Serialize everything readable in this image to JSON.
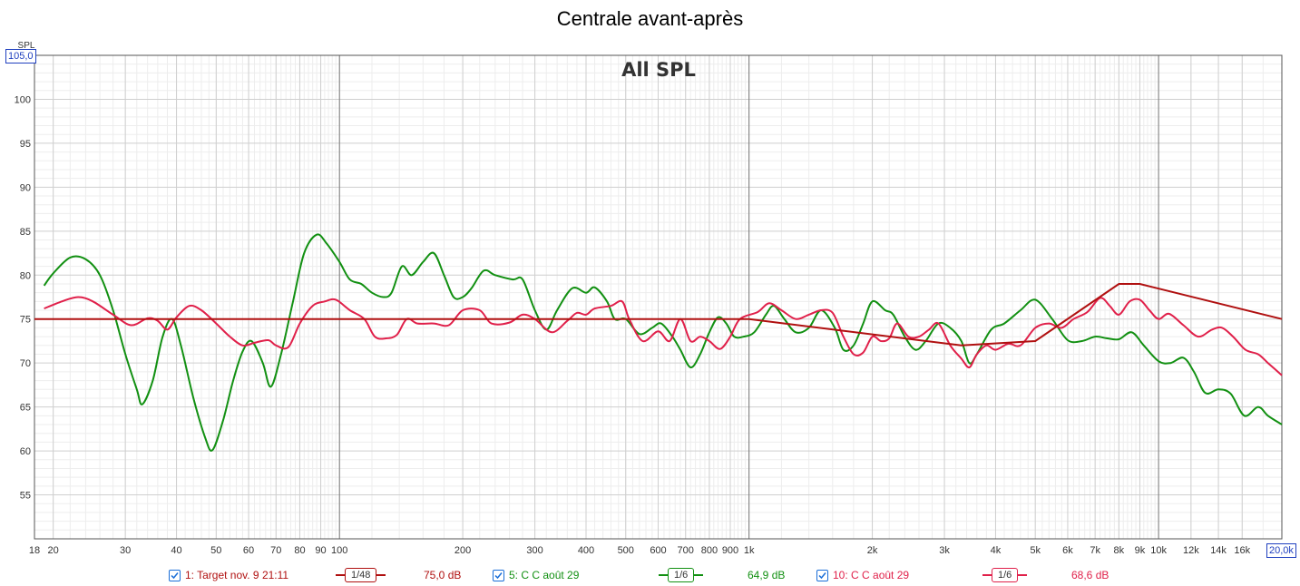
{
  "window": {
    "title": "Centrale avant-après"
  },
  "chart_data": {
    "type": "line",
    "title": "Centrale avant-après",
    "subtitle": "All SPL",
    "ylabel": "SPL",
    "x_scale": "log",
    "xlim": [
      18,
      20000
    ],
    "ylim": [
      50,
      105
    ],
    "y_ticks": [
      55,
      60,
      65,
      70,
      75,
      80,
      85,
      90,
      95,
      100
    ],
    "y_top_label": "105,0",
    "x_ticks": [
      {
        "v": 18,
        "label": "18"
      },
      {
        "v": 20,
        "label": "20"
      },
      {
        "v": 30,
        "label": "30"
      },
      {
        "v": 40,
        "label": "40"
      },
      {
        "v": 50,
        "label": "50"
      },
      {
        "v": 60,
        "label": "60"
      },
      {
        "v": 70,
        "label": "70"
      },
      {
        "v": 80,
        "label": "80"
      },
      {
        "v": 90,
        "label": "90"
      },
      {
        "v": 100,
        "label": "100"
      },
      {
        "v": 200,
        "label": "200"
      },
      {
        "v": 300,
        "label": "300"
      },
      {
        "v": 400,
        "label": "400"
      },
      {
        "v": 500,
        "label": "500"
      },
      {
        "v": 600,
        "label": "600"
      },
      {
        "v": 700,
        "label": "700"
      },
      {
        "v": 800,
        "label": "800"
      },
      {
        "v": 900,
        "label": "900"
      },
      {
        "v": 1000,
        "label": "1k"
      },
      {
        "v": 2000,
        "label": "2k"
      },
      {
        "v": 3000,
        "label": "3k"
      },
      {
        "v": 4000,
        "label": "4k"
      },
      {
        "v": 5000,
        "label": "5k"
      },
      {
        "v": 6000,
        "label": "6k"
      },
      {
        "v": 7000,
        "label": "7k"
      },
      {
        "v": 8000,
        "label": "8k"
      },
      {
        "v": 9000,
        "label": "9k"
      },
      {
        "v": 10000,
        "label": "10k"
      },
      {
        "v": 12000,
        "label": "12k"
      },
      {
        "v": 14000,
        "label": "14k"
      },
      {
        "v": 16000,
        "label": "16k"
      }
    ],
    "x_end_label": "20,0k",
    "grid": true,
    "series": [
      {
        "name": "1: Target nov. 9 21:11",
        "color": "#b01010",
        "smoothing": "1/48",
        "level": "75,0 dB",
        "points": [
          [
            18,
            75
          ],
          [
            1000,
            75
          ],
          [
            3300,
            72
          ],
          [
            5000,
            72.5
          ],
          [
            8000,
            79
          ],
          [
            9000,
            79
          ],
          [
            20000,
            75
          ]
        ]
      },
      {
        "name": "5: C C août 29",
        "color": "#129012",
        "smoothing": "1/6",
        "level": "64,9 dB",
        "points": [
          [
            19,
            78.8
          ],
          [
            20,
            80.2
          ],
          [
            22,
            82
          ],
          [
            24,
            81.8
          ],
          [
            26,
            80
          ],
          [
            28,
            76
          ],
          [
            30,
            71
          ],
          [
            32,
            67
          ],
          [
            33,
            65.3
          ],
          [
            35,
            68
          ],
          [
            37,
            73
          ],
          [
            39,
            75
          ],
          [
            41,
            72
          ],
          [
            44,
            66
          ],
          [
            47,
            61.5
          ],
          [
            49,
            60.1
          ],
          [
            52,
            63.5
          ],
          [
            55,
            68
          ],
          [
            58,
            71.3
          ],
          [
            61,
            72.5
          ],
          [
            65,
            70
          ],
          [
            68,
            67.3
          ],
          [
            72,
            71
          ],
          [
            77,
            77
          ],
          [
            82,
            82.5
          ],
          [
            88,
            84.6
          ],
          [
            93,
            83.6
          ],
          [
            100,
            81.5
          ],
          [
            106,
            79.5
          ],
          [
            113,
            79
          ],
          [
            120,
            78
          ],
          [
            128,
            77.5
          ],
          [
            134,
            78
          ],
          [
            142,
            81
          ],
          [
            150,
            80
          ],
          [
            160,
            81.5
          ],
          [
            170,
            82.5
          ],
          [
            180,
            80
          ],
          [
            190,
            77.5
          ],
          [
            200,
            77.5
          ],
          [
            210,
            78.5
          ],
          [
            225,
            80.5
          ],
          [
            240,
            80
          ],
          [
            265,
            79.5
          ],
          [
            280,
            79.5
          ],
          [
            300,
            76
          ],
          [
            320,
            73.8
          ],
          [
            340,
            76
          ],
          [
            370,
            78.5
          ],
          [
            400,
            78
          ],
          [
            420,
            78.6
          ],
          [
            450,
            77
          ],
          [
            470,
            75
          ],
          [
            500,
            75
          ],
          [
            540,
            73.3
          ],
          [
            580,
            74
          ],
          [
            610,
            74.5
          ],
          [
            650,
            73
          ],
          [
            680,
            71.5
          ],
          [
            720,
            69.5
          ],
          [
            760,
            71
          ],
          [
            800,
            73.5
          ],
          [
            840,
            75.2
          ],
          [
            880,
            74.5
          ],
          [
            920,
            73
          ],
          [
            970,
            73
          ],
          [
            1030,
            73.5
          ],
          [
            1100,
            75.5
          ],
          [
            1150,
            76.5
          ],
          [
            1220,
            75
          ],
          [
            1300,
            73.5
          ],
          [
            1400,
            74
          ],
          [
            1500,
            76
          ],
          [
            1620,
            74
          ],
          [
            1700,
            71.5
          ],
          [
            1800,
            72
          ],
          [
            1900,
            74.5
          ],
          [
            2000,
            77
          ],
          [
            2150,
            76
          ],
          [
            2250,
            75.5
          ],
          [
            2400,
            73
          ],
          [
            2550,
            71.5
          ],
          [
            2700,
            72.5
          ],
          [
            2900,
            74.5
          ],
          [
            3100,
            74
          ],
          [
            3300,
            72.5
          ],
          [
            3450,
            70
          ],
          [
            3600,
            71
          ],
          [
            3900,
            73.8
          ],
          [
            4200,
            74.5
          ],
          [
            4600,
            76
          ],
          [
            5000,
            77.2
          ],
          [
            5500,
            75
          ],
          [
            6000,
            72.6
          ],
          [
            6500,
            72.5
          ],
          [
            7000,
            73
          ],
          [
            7500,
            72.8
          ],
          [
            8000,
            72.7
          ],
          [
            8600,
            73.5
          ],
          [
            9200,
            72
          ],
          [
            10000,
            70.2
          ],
          [
            10700,
            70
          ],
          [
            11500,
            70.6
          ],
          [
            12200,
            69
          ],
          [
            13000,
            66.6
          ],
          [
            14000,
            67
          ],
          [
            15000,
            66.5
          ],
          [
            16200,
            64
          ],
          [
            17500,
            65
          ],
          [
            18500,
            64
          ],
          [
            20000,
            63
          ]
        ]
      },
      {
        "name": "10: C C août 29",
        "color": "#e0204a",
        "smoothing": "1/6",
        "level": "68,6 dB",
        "points": [
          [
            19,
            76.2
          ],
          [
            21,
            77
          ],
          [
            23,
            77.5
          ],
          [
            25,
            77
          ],
          [
            28,
            75.5
          ],
          [
            31,
            74.3
          ],
          [
            34,
            75.1
          ],
          [
            36,
            74.8
          ],
          [
            38,
            73.8
          ],
          [
            40,
            75.2
          ],
          [
            43,
            76.5
          ],
          [
            46,
            76
          ],
          [
            50,
            74.5
          ],
          [
            54,
            73
          ],
          [
            58,
            72
          ],
          [
            62,
            72.3
          ],
          [
            67,
            72.6
          ],
          [
            70,
            72
          ],
          [
            75,
            71.8
          ],
          [
            80,
            74.5
          ],
          [
            86,
            76.5
          ],
          [
            92,
            77
          ],
          [
            98,
            77.2
          ],
          [
            106,
            76
          ],
          [
            115,
            75
          ],
          [
            122,
            73
          ],
          [
            130,
            72.8
          ],
          [
            138,
            73.2
          ],
          [
            146,
            75
          ],
          [
            155,
            74.5
          ],
          [
            170,
            74.5
          ],
          [
            185,
            74.3
          ],
          [
            200,
            76
          ],
          [
            220,
            76
          ],
          [
            235,
            74.5
          ],
          [
            260,
            74.6
          ],
          [
            280,
            75.5
          ],
          [
            300,
            75
          ],
          [
            330,
            73.5
          ],
          [
            360,
            74.8
          ],
          [
            380,
            75.7
          ],
          [
            400,
            75.5
          ],
          [
            420,
            76.2
          ],
          [
            460,
            76.5
          ],
          [
            490,
            77
          ],
          [
            510,
            75
          ],
          [
            550,
            72.5
          ],
          [
            600,
            73.6
          ],
          [
            640,
            72.5
          ],
          [
            680,
            75
          ],
          [
            720,
            72.5
          ],
          [
            760,
            73
          ],
          [
            800,
            72.5
          ],
          [
            850,
            71.6
          ],
          [
            900,
            73
          ],
          [
            950,
            75
          ],
          [
            1050,
            75.8
          ],
          [
            1120,
            76.8
          ],
          [
            1200,
            76
          ],
          [
            1300,
            75
          ],
          [
            1400,
            75.5
          ],
          [
            1500,
            76
          ],
          [
            1600,
            75.7
          ],
          [
            1700,
            73
          ],
          [
            1800,
            71
          ],
          [
            1900,
            71.2
          ],
          [
            2000,
            73
          ],
          [
            2100,
            72.5
          ],
          [
            2200,
            72.8
          ],
          [
            2300,
            74.5
          ],
          [
            2450,
            73
          ],
          [
            2600,
            73
          ],
          [
            2750,
            73.8
          ],
          [
            2900,
            74.5
          ],
          [
            3100,
            72
          ],
          [
            3300,
            70.5
          ],
          [
            3450,
            69.5
          ],
          [
            3600,
            71
          ],
          [
            3800,
            72
          ],
          [
            4000,
            71.5
          ],
          [
            4300,
            72.2
          ],
          [
            4600,
            72
          ],
          [
            5000,
            74
          ],
          [
            5400,
            74.5
          ],
          [
            5800,
            74
          ],
          [
            6200,
            75
          ],
          [
            6700,
            75.8
          ],
          [
            7200,
            77.4
          ],
          [
            7600,
            76.5
          ],
          [
            8000,
            75.5
          ],
          [
            8500,
            77
          ],
          [
            9000,
            77.2
          ],
          [
            9500,
            76
          ],
          [
            10000,
            75
          ],
          [
            10600,
            75.6
          ],
          [
            11500,
            74.3
          ],
          [
            12500,
            73
          ],
          [
            13500,
            73.8
          ],
          [
            14300,
            74
          ],
          [
            15200,
            73
          ],
          [
            16300,
            71.5
          ],
          [
            17500,
            71
          ],
          [
            18500,
            70
          ],
          [
            20000,
            68.6
          ]
        ]
      }
    ]
  }
}
